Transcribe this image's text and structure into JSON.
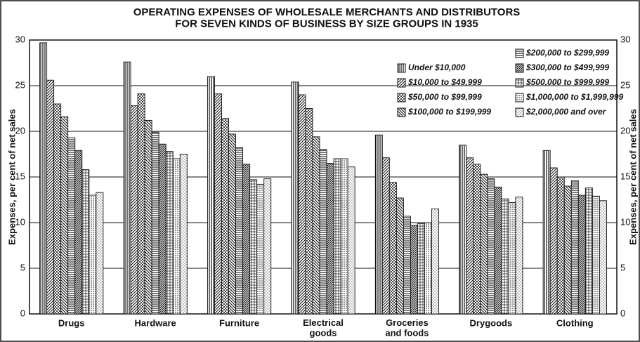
{
  "chart_data": {
    "type": "bar",
    "title": "OPERATING EXPENSES OF WHOLESALE MERCHANTS AND DISTRIBUTORS\nFOR SEVEN KINDS OF BUSINESS BY SIZE GROUPS IN 1935",
    "ylabel": "Expenses, per cent of net sales",
    "y2label": "Expenses, per cent of net sales",
    "categories": [
      "Drugs",
      "Hardware",
      "Furniture",
      "Electrical\ngoods",
      "Groceries\nand foods",
      "Drygoods",
      "Clothing"
    ],
    "ylim": [
      0,
      30
    ],
    "yticks": [
      0,
      5,
      10,
      15,
      20,
      25,
      30
    ],
    "y2lim": [
      0,
      30
    ],
    "y2ticks": [
      0,
      5,
      10,
      15,
      20,
      25,
      30
    ],
    "grid": true,
    "legend": "top-right",
    "series": [
      {
        "name": "Under $10,000",
        "color": "#111",
        "pattern": "vertical-lines",
        "values": [
          29.7,
          27.6,
          26.0,
          25.4,
          19.6,
          18.5,
          17.9
        ]
      },
      {
        "name": "$10,000 to $49,999",
        "color": "#111",
        "pattern": "diagonal-lines",
        "values": [
          25.6,
          22.8,
          24.1,
          24.0,
          17.1,
          17.1,
          16.0
        ]
      },
      {
        "name": "$50,000 to $99,999",
        "color": "#111",
        "pattern": "checker",
        "values": [
          23.0,
          24.1,
          21.4,
          22.5,
          14.4,
          16.4,
          15.0
        ]
      },
      {
        "name": "$100,000 to $199,999",
        "color": "#111",
        "pattern": "back-diagonal",
        "values": [
          21.6,
          21.2,
          19.7,
          19.4,
          12.7,
          15.3,
          14.0
        ]
      },
      {
        "name": "$200,000 to $299,999",
        "color": "#111",
        "pattern": "horizontal-lines",
        "values": [
          19.3,
          19.9,
          18.2,
          18.0,
          10.7,
          14.8,
          14.6
        ]
      },
      {
        "name": "$300,000 to $499,999",
        "color": "#111",
        "pattern": "dense-diagonal",
        "values": [
          17.9,
          18.6,
          16.4,
          16.5,
          9.7,
          13.9,
          13.0
        ]
      },
      {
        "name": "$500,000 to $999,999",
        "color": "#111",
        "pattern": "grid-dots",
        "values": [
          15.8,
          17.8,
          14.7,
          17.0,
          9.9,
          12.6,
          13.8
        ]
      },
      {
        "name": "$1,000,000 to $1,999,999",
        "color": "#111",
        "pattern": "fine-dots",
        "values": [
          13.0,
          17.0,
          14.2,
          17.0,
          10.0,
          12.2,
          12.9
        ]
      },
      {
        "name": "$2,000,000 and over",
        "color": "#111",
        "pattern": "stipple",
        "values": [
          13.3,
          17.5,
          14.8,
          16.1,
          11.5,
          12.8,
          12.4
        ]
      }
    ]
  }
}
